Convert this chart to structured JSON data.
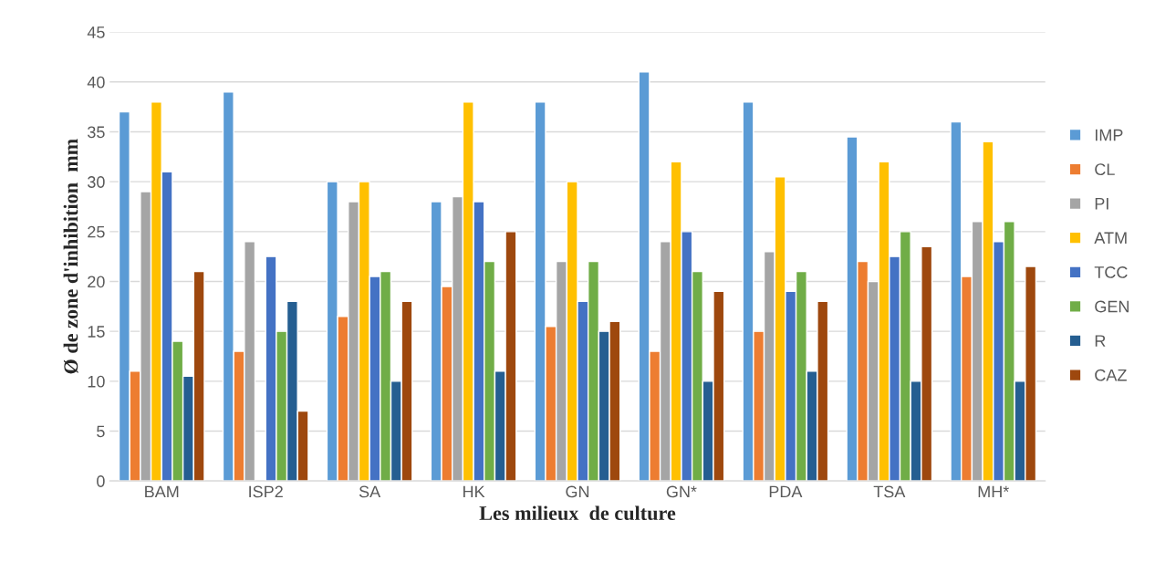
{
  "chart_data": {
    "type": "bar",
    "xlabel": "Les milieux  de culture",
    "ylabel": "Ø de zone d'inhibition  mm",
    "categories": [
      "BAM",
      "ISP2",
      "SA",
      "HK",
      "GN",
      "GN*",
      "PDA",
      "TSA",
      "MH*"
    ],
    "series": [
      {
        "name": "IMP",
        "color": "#5b9bd5",
        "values": [
          37,
          39,
          30,
          28,
          38,
          41,
          38,
          34.5,
          36
        ]
      },
      {
        "name": "CL",
        "color": "#ed7d31",
        "values": [
          11,
          13,
          16.5,
          19.5,
          15.5,
          13,
          15,
          22,
          20.5
        ]
      },
      {
        "name": "PI",
        "color": "#a5a5a5",
        "values": [
          29,
          24,
          28,
          28.5,
          22,
          24,
          23,
          20,
          26
        ]
      },
      {
        "name": "ATM",
        "color": "#ffc000",
        "values": [
          38,
          null,
          30,
          38,
          30,
          32,
          30.5,
          32,
          34
        ]
      },
      {
        "name": "TCC",
        "color": "#4472c4",
        "values": [
          31,
          22.5,
          20.5,
          28,
          18,
          25,
          19,
          22.5,
          24
        ]
      },
      {
        "name": "GEN",
        "color": "#70ad47",
        "values": [
          14,
          15,
          21,
          22,
          22,
          21,
          21,
          25,
          26
        ]
      },
      {
        "name": "R",
        "color": "#255e91",
        "values": [
          10.5,
          18,
          10,
          11,
          15,
          10,
          11,
          10,
          10
        ]
      },
      {
        "name": "CAZ",
        "color": "#9e480e",
        "values": [
          21,
          7,
          18,
          25,
          16,
          19,
          18,
          23.5,
          21.5
        ]
      }
    ],
    "ylim": [
      0,
      45
    ],
    "yticks": [
      0,
      5,
      10,
      15,
      20,
      25,
      30,
      35,
      40,
      45
    ],
    "grid": "y",
    "legend": "right"
  }
}
